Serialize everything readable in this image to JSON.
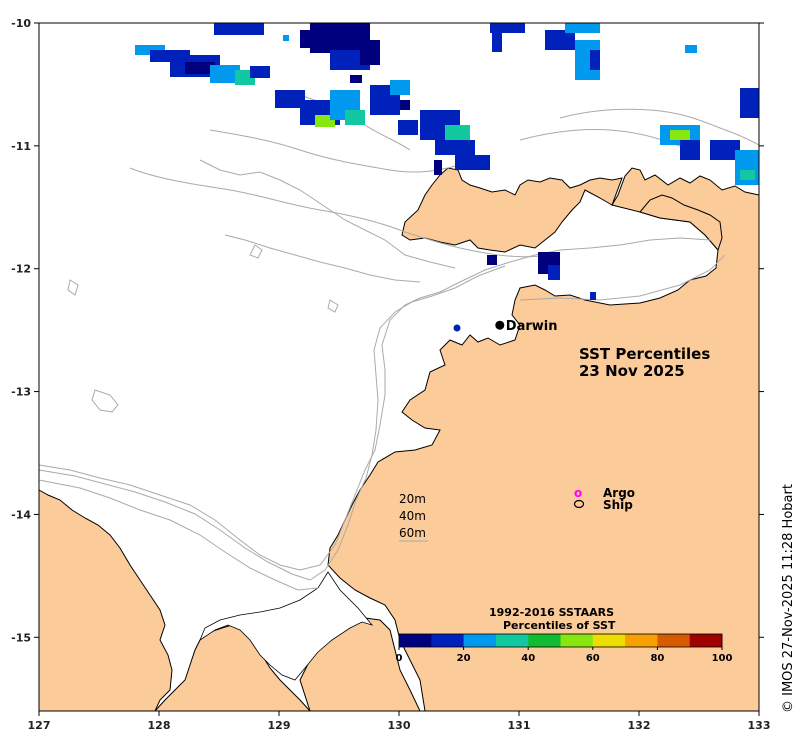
{
  "title": {
    "line1": "SST Percentiles",
    "line2": "23 Nov 2025"
  },
  "credit": "© IMOS 27-Nov-2025 11:28 Hobart",
  "axes": {
    "lon": {
      "min": 127,
      "max": 133,
      "ticks": [
        "127",
        "128",
        "129",
        "130",
        "131",
        "132",
        "133"
      ]
    },
    "lat": {
      "min": -15.6,
      "max": -10,
      "ticks": [
        "-10",
        "-11",
        "-12",
        "-13",
        "-14",
        "-15"
      ]
    }
  },
  "places": [
    {
      "name": "Darwin",
      "lon": 130.84,
      "lat": -12.46
    }
  ],
  "legend": {
    "argo": "Argo",
    "ship": "Ship",
    "argo_color": "#ff00ff"
  },
  "depth_contours": [
    "20m",
    "40m",
    "60m"
  ],
  "colorbar": {
    "title1": "1992-2016 SSTAARS",
    "title2": "Percentiles of SST",
    "ticks": [
      "0",
      "20",
      "40",
      "60",
      "80",
      "100"
    ],
    "colors": [
      "#00007f",
      "#0022bb",
      "#0099ee",
      "#11c8a0",
      "#11bb33",
      "#88e611",
      "#eedd00",
      "#f5a000",
      "#d65a00",
      "#a00000"
    ]
  },
  "colors": {
    "land": "#fccb9a",
    "sea": "#ffffff",
    "coast": "#000000",
    "bathy": "#aaaaaa"
  }
}
